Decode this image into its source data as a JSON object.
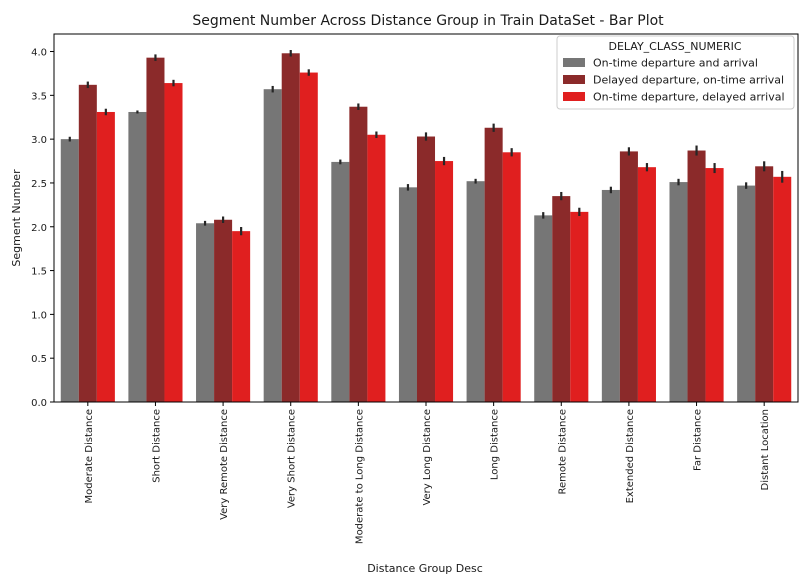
{
  "chart_data": {
    "type": "bar",
    "title": "Segment Number Across Distance Group in Train DataSet - Bar Plot",
    "xlabel": "Distance Group Desc",
    "ylabel": "Segment Number",
    "ylim": [
      0,
      4.2
    ],
    "yticks": [
      "0.0",
      "0.5",
      "1.0",
      "1.5",
      "2.0",
      "2.5",
      "3.0",
      "3.5",
      "4.0"
    ],
    "grid": false,
    "legend_title": "DELAY_CLASS_NUMERIC",
    "legend_position": "top-right",
    "categories": [
      "Moderate Distance",
      "Short Distance",
      "Very Remote Distance",
      "Very Short Distance",
      "Moderate to Long Distance",
      "Very Long Distance",
      "Long Distance",
      "Remote Distance",
      "Extended Distance",
      "Far Distance",
      "Distant Location"
    ],
    "series": [
      {
        "name": "On-time departure and arrival",
        "color": "#767676",
        "values": [
          3.0,
          3.31,
          2.04,
          3.57,
          2.74,
          2.45,
          2.52,
          2.13,
          2.42,
          2.51,
          2.47
        ],
        "errors": [
          0.01,
          0.0,
          0.01,
          0.02,
          0.01,
          0.02,
          0.01,
          0.02,
          0.02,
          0.02,
          0.02
        ]
      },
      {
        "name": "Delayed departure, on-time arrival",
        "color": "#8b2a2a",
        "values": [
          3.62,
          3.93,
          2.08,
          3.98,
          3.37,
          3.03,
          3.13,
          2.35,
          2.86,
          2.87,
          2.69
        ],
        "errors": [
          0.02,
          0.02,
          0.02,
          0.02,
          0.02,
          0.03,
          0.03,
          0.03,
          0.03,
          0.04,
          0.04
        ]
      },
      {
        "name": "On-time departure, delayed arrival",
        "color": "#e01f1f",
        "values": [
          3.31,
          3.64,
          1.95,
          3.76,
          3.05,
          2.75,
          2.85,
          2.17,
          2.68,
          2.67,
          2.57
        ],
        "errors": [
          0.02,
          0.02,
          0.03,
          0.02,
          0.02,
          0.03,
          0.03,
          0.03,
          0.03,
          0.04,
          0.05
        ]
      }
    ]
  }
}
